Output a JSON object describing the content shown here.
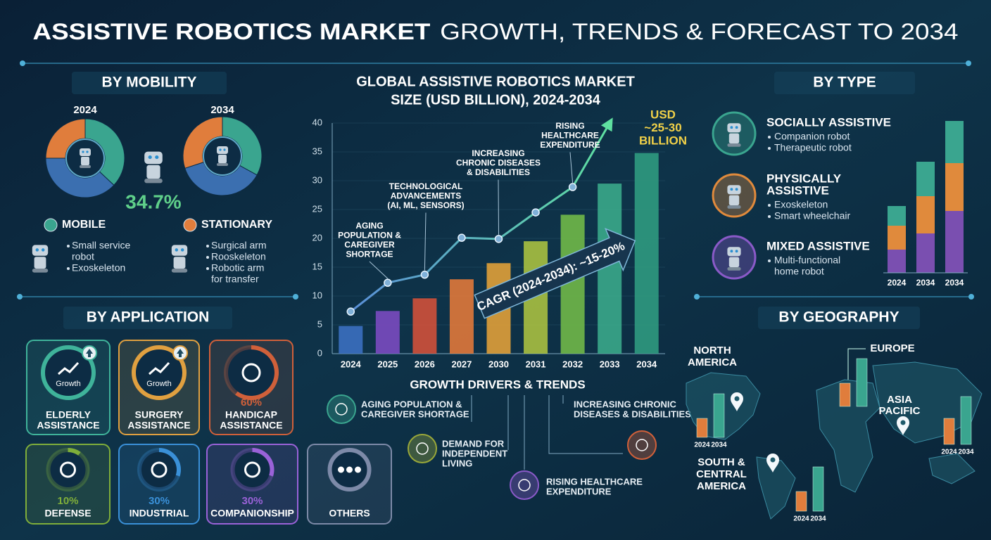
{
  "title": {
    "strong": "ASSISTIVE ROBOTICS MARKET",
    "light": "GROWTH, TRENDS & FORECAST TO 2034"
  },
  "mobility": {
    "heading": "BY MOBILITY",
    "donuts": [
      {
        "year": "2024",
        "values": [
          37,
          38,
          25
        ],
        "colors": [
          "#3aa58f",
          "#3b6fb0",
          "#e07d3c"
        ]
      },
      {
        "year": "2034",
        "values": [
          33,
          37,
          30
        ],
        "colors": [
          "#3aa58f",
          "#3b6fb0",
          "#e07d3c"
        ]
      }
    ],
    "growth": "34.7%",
    "groups": [
      {
        "name": "MOBILE",
        "color": "#3aa58f",
        "items": [
          [
            "Small service",
            "robot"
          ],
          [
            "Exoskeleton"
          ]
        ]
      },
      {
        "name": "STATIONARY",
        "color": "#e07d3c",
        "items": [
          [
            "Surgical arm"
          ],
          [
            "Rooskeleton"
          ],
          [
            "Robotic arm",
            "for transfer"
          ]
        ]
      }
    ]
  },
  "application": {
    "heading": "BY APPLICATION",
    "tiles": [
      {
        "label": [
          "ELDERLY",
          "ASSISTANCE"
        ],
        "badge": "Growth",
        "color": "#3fb39a"
      },
      {
        "label": [
          "SURGERY",
          "ASSISTANCE"
        ],
        "badge": "Growth",
        "color": "#e0a040"
      },
      {
        "label": [
          "HANDICAP",
          "ASSISTANCE"
        ],
        "value": 60,
        "value_label": "60%",
        "color": "#d0603a"
      },
      {
        "label": [
          "DEFENSE"
        ],
        "value": 10,
        "value_label": "10%",
        "color": "#7fae3a"
      },
      {
        "label": [
          "INDUSTRIAL"
        ],
        "value": 30,
        "value_label": "30%",
        "color": "#3a90d8"
      },
      {
        "label": [
          "COMPANIONSHIP"
        ],
        "value": 30,
        "value_label": "30%",
        "color": "#9a62d8"
      },
      {
        "label": [
          "OTHERS"
        ],
        "color": "#7d8aa8"
      }
    ]
  },
  "chart_data": {
    "type": "bar",
    "title": [
      "GLOBAL ASSISTIVE ROBOTICS MARKET",
      "SIZE (USD BILLION), 2024-2034"
    ],
    "categories": [
      "2024",
      "2025",
      "2026",
      "2027",
      "2030",
      "2031",
      "2032",
      "2033",
      "2034"
    ],
    "values": [
      4.8,
      7.4,
      9.6,
      12.9,
      15.7,
      19.5,
      24.1,
      29.5,
      34.8
    ],
    "colors": [
      "#3b6fc0",
      "#7a4ac0",
      "#d0503a",
      "#e0783a",
      "#e0a038",
      "#a8c040",
      "#70b848",
      "#3aa88a",
      "#2f9a80"
    ],
    "line": {
      "values": [
        7.3,
        12.3,
        13.7,
        20.1,
        19.9,
        24.5,
        28.9,
        40,
        null
      ]
    },
    "ylim": [
      0,
      40
    ],
    "yticks": [
      0,
      5,
      10,
      15,
      20,
      25,
      30,
      35,
      40
    ],
    "annotations": [
      [
        "AGING",
        "POPULATION &",
        "CAREGIVER",
        "SHORTAGE"
      ],
      [
        "TECHNOLOGICAL",
        "ADVANCEMENTS",
        "(AI, ML, SENSORS)"
      ],
      [
        "INCREASING",
        "CHRONIC DISEASES",
        "& DISABILITIES"
      ],
      [
        "RISING",
        "HEALTHCARE",
        "EXPENDITURE"
      ]
    ],
    "callout": [
      "USD",
      "~25-30",
      "BILLION"
    ],
    "cagr": "CAGR (2024-2034): ~15-20%"
  },
  "drivers": {
    "heading": "GROWTH DRIVERS & TRENDS",
    "items": [
      [
        "AGING POPULATION &",
        "CAREGIVER SHORTAGE"
      ],
      [
        "DEMAND FOR",
        "INDEPENDENT",
        "LIVING"
      ],
      [
        "RISING HEALTHCARE",
        "EXPENDITURE"
      ],
      [
        "INCREASING CHRONIC",
        "DISEASES & DISABILITIES"
      ]
    ]
  },
  "type": {
    "heading": "BY TYPE",
    "items": [
      {
        "name": [
          "SOCIALLY ASSISTIVE"
        ],
        "color": "#3aa58f",
        "bullets": [
          [
            "Companion robot"
          ],
          [
            "Therapeutic robot"
          ]
        ]
      },
      {
        "name": [
          "PHYSICALLY",
          "ASSISTIVE"
        ],
        "color": "#e08a3c",
        "bullets": [
          [
            "Exoskeleton"
          ],
          [
            "Smart wheelchair"
          ]
        ]
      },
      {
        "name": [
          "MIXED ASSISTIVE"
        ],
        "color": "#8a5ac8",
        "bullets": [
          [
            "Multi-functional",
            "home robot"
          ]
        ]
      }
    ],
    "chart": {
      "categories": [
        "2024",
        "2034",
        "2034"
      ],
      "series": [
        {
          "color": "#7a4fb0",
          "values": [
            33,
            56,
            88
          ]
        },
        {
          "color": "#e08a3c",
          "values": [
            34,
            53,
            68
          ]
        },
        {
          "color": "#3aa58f",
          "values": [
            28,
            49,
            60
          ]
        }
      ]
    }
  },
  "geography": {
    "heading": "BY GEOGRAPHY",
    "years": [
      "2024",
      "2034"
    ],
    "colors": [
      "#e07d3c",
      "#3aa58f"
    ],
    "regions": [
      {
        "name": [
          "NORTH",
          "AMERICA"
        ],
        "values": [
          27,
          62
        ]
      },
      {
        "name": [
          "EUROPE"
        ],
        "values": [
          33,
          68
        ]
      },
      {
        "name": [
          "ASIA",
          "PACIFIC"
        ],
        "values": [
          37,
          68
        ]
      },
      {
        "name": [
          "SOUTH &",
          "CENTRAL",
          "AMERICA"
        ],
        "values": [
          28,
          63
        ]
      }
    ]
  }
}
